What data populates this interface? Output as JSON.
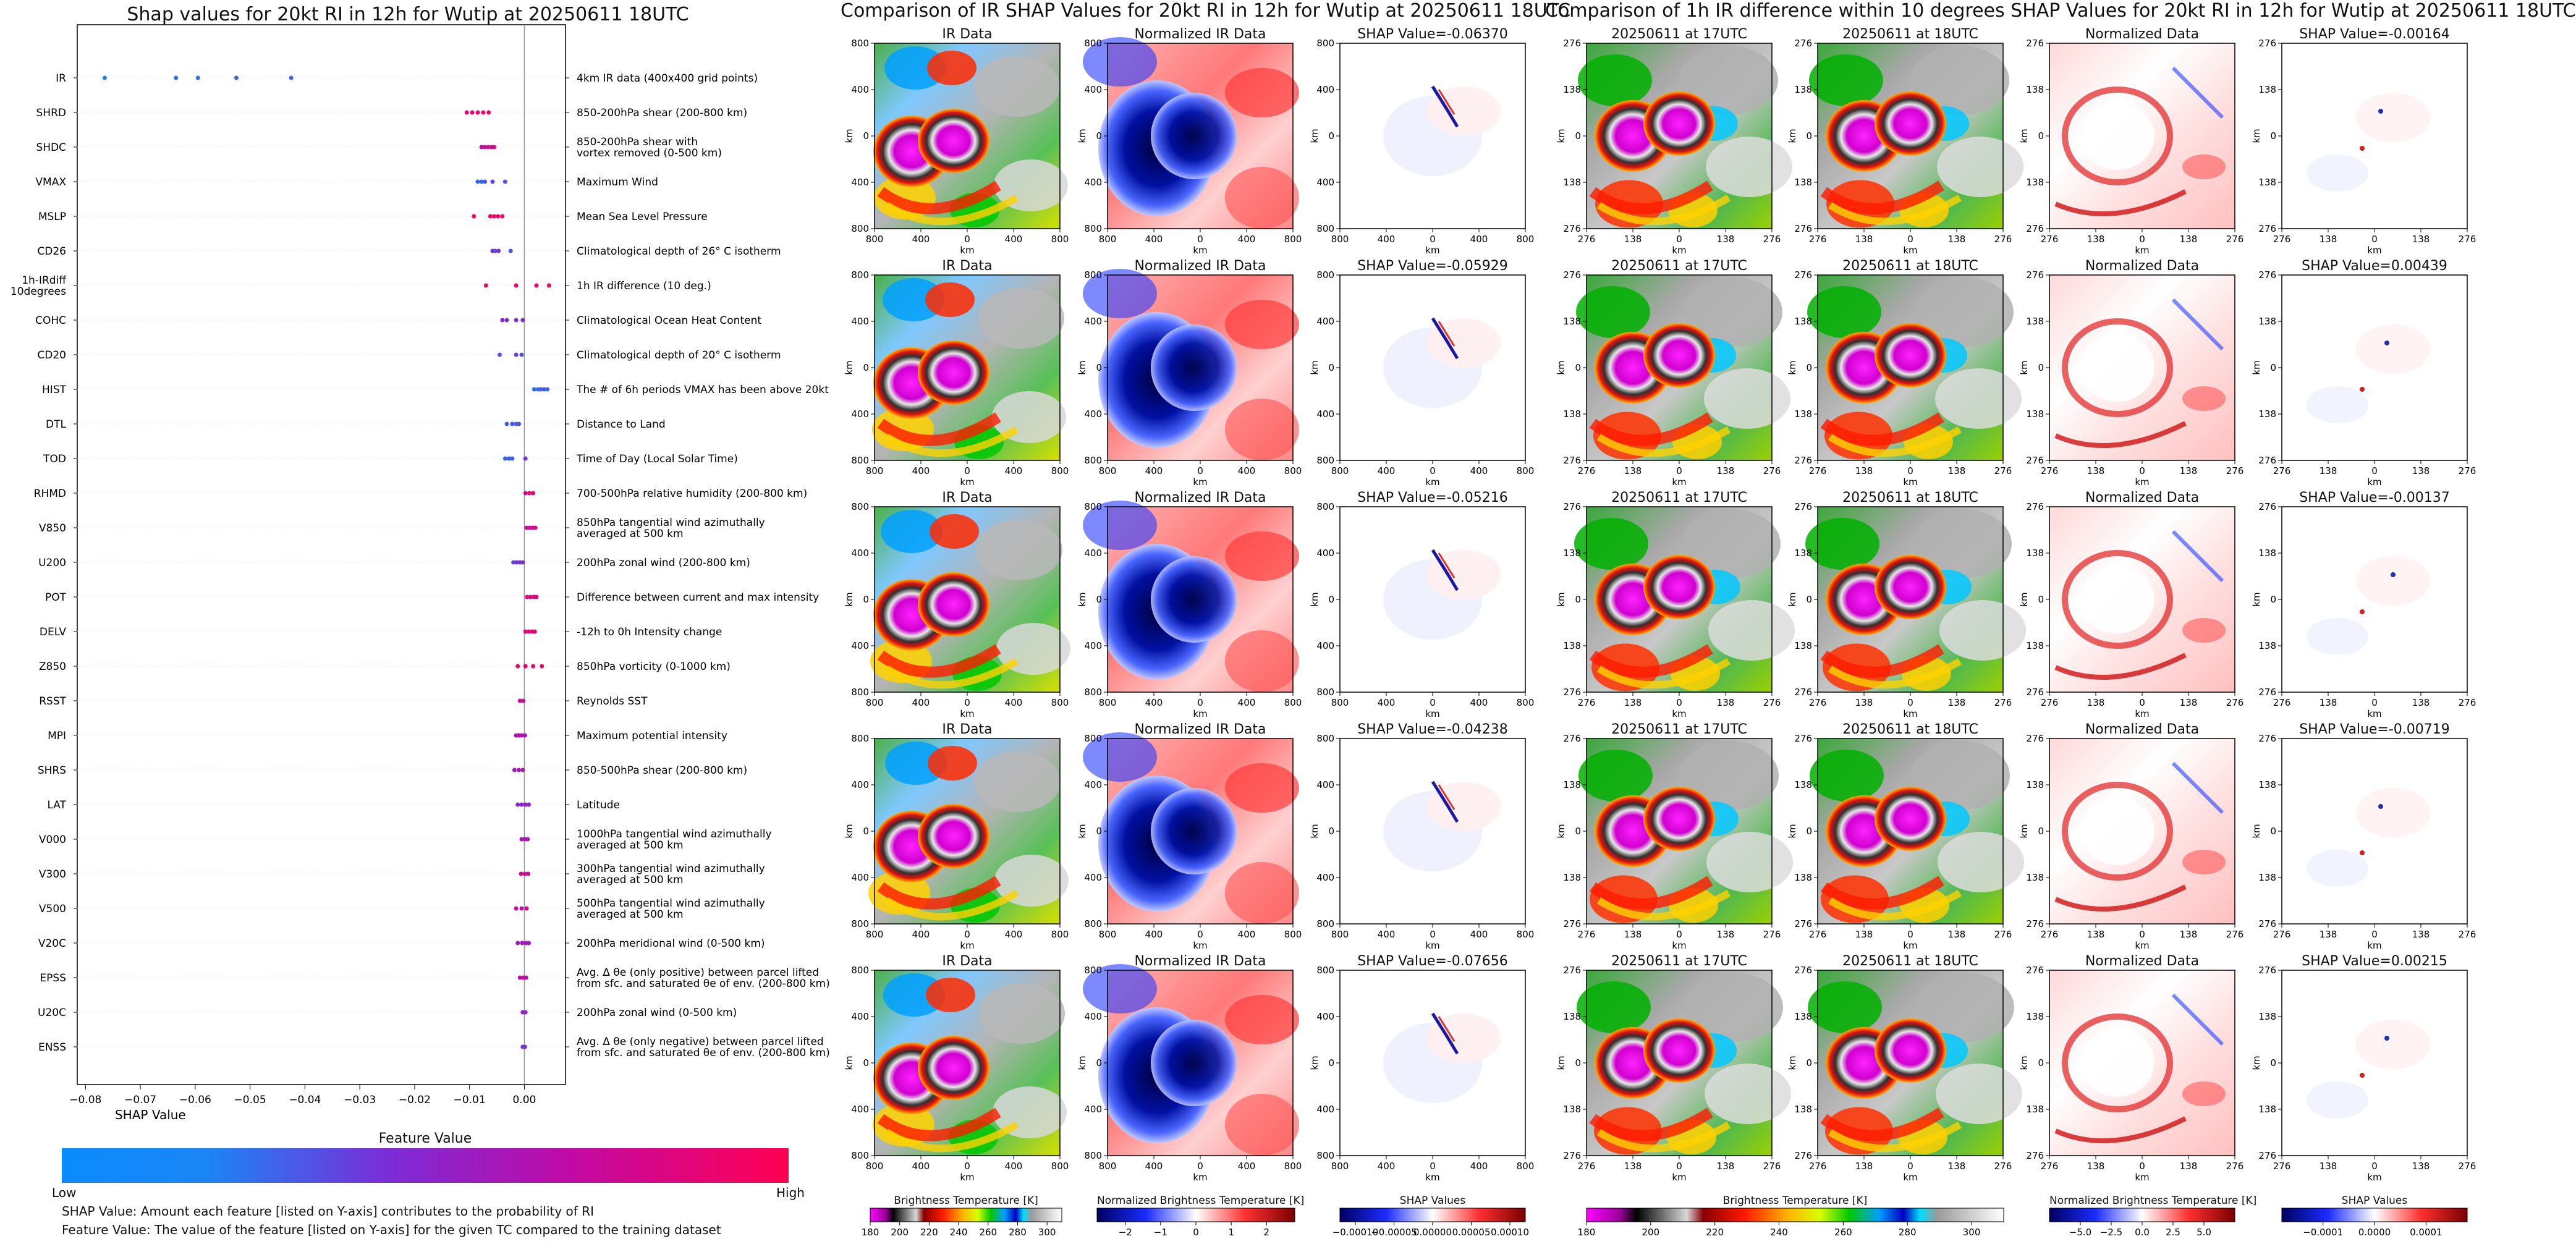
{
  "shap_title": "Shap values for 20kt RI in 12h for Wutip at 20250611 18UTC",
  "mid_title": "Comparison of IR SHAP Values for 20kt RI in 12h for Wutip at 20250611 18UTC",
  "right_title": "Comparison of 1h IR difference within 10 degrees SHAP Values for 20kt RI in 12h for Wutip at 20250611 18UTC",
  "colorbar": {
    "title": "Feature Value",
    "low": "Low",
    "high": "High",
    "colors": [
      "#0a8cff",
      "#7b2cd6",
      "#b80fa8",
      "#ff0052"
    ]
  },
  "notes": {
    "line1": "SHAP Value: Amount each feature [listed on Y-axis] contributes to the probability of RI",
    "line2": "Feature Value: The value of the feature [listed on Y-axis] for the given TC compared to the training dataset"
  },
  "axis_units": {
    "km": "km"
  },
  "chart_data": [
    {
      "type": "scatter",
      "name": "shap-beeswarm",
      "title": "Shap values for 20kt RI in 12h for Wutip at 20250611 18UTC",
      "xlabel": "SHAP Value",
      "ylabel": "",
      "xlim": [
        -0.0815,
        0.0075
      ],
      "xticks": [
        -0.08,
        -0.07,
        -0.06,
        -0.05,
        -0.04,
        -0.03,
        -0.02,
        -0.01,
        0.0
      ],
      "xtick_labels": [
        "−0.08",
        "−0.07",
        "−0.06",
        "−0.05",
        "−0.04",
        "−0.03",
        "−0.02",
        "−0.01",
        "0.00"
      ],
      "features": [
        {
          "code": "IR",
          "desc": "4km IR data (400x400 grid points)",
          "points": [
            [
              -0.0765,
              0.05
            ],
            [
              -0.0635,
              0.1
            ],
            [
              -0.0595,
              0.1
            ],
            [
              -0.0525,
              0.15
            ],
            [
              -0.0425,
              0.15
            ]
          ]
        },
        {
          "code": "SHRD",
          "desc": "850-200hPa shear (200-800 km)",
          "points": [
            [
              -0.0105,
              0.88
            ],
            [
              -0.0095,
              0.85
            ],
            [
              -0.0085,
              0.88
            ],
            [
              -0.0075,
              0.92
            ],
            [
              -0.0065,
              0.95
            ]
          ]
        },
        {
          "code": "SHDC",
          "desc": "850-200hPa shear with\nvortex removed (0-500 km)",
          "points": [
            [
              -0.0078,
              0.7
            ],
            [
              -0.0072,
              0.75
            ],
            [
              -0.0066,
              0.72
            ],
            [
              -0.006,
              0.78
            ],
            [
              -0.0055,
              0.8
            ]
          ]
        },
        {
          "code": "VMAX",
          "desc": "Maximum Wind",
          "points": [
            [
              -0.0085,
              0.15
            ],
            [
              -0.0078,
              0.12
            ],
            [
              -0.0072,
              0.18
            ],
            [
              -0.0058,
              0.25
            ],
            [
              -0.0035,
              0.2
            ]
          ]
        },
        {
          "code": "MSLP",
          "desc": "Mean Sea Level Pressure",
          "points": [
            [
              -0.0092,
              0.95
            ],
            [
              -0.0062,
              0.9
            ],
            [
              -0.0055,
              0.92
            ],
            [
              -0.0048,
              0.94
            ],
            [
              -0.004,
              0.9
            ]
          ]
        },
        {
          "code": "CD26",
          "desc": "Climatological depth of 26° C isotherm",
          "points": [
            [
              -0.0058,
              0.3
            ],
            [
              -0.0053,
              0.25
            ],
            [
              -0.0047,
              0.3
            ],
            [
              -0.0025,
              0.2
            ]
          ]
        },
        {
          "code": "1h-IRdiff\n10degrees",
          "desc": "1h IR difference (10 deg.)",
          "points": [
            [
              -0.007,
              0.95
            ],
            [
              -0.0015,
              0.92
            ],
            [
              0.0022,
              0.95
            ],
            [
              0.0045,
              0.97
            ]
          ]
        },
        {
          "code": "COHC",
          "desc": "Climatological Ocean Heat Content",
          "points": [
            [
              -0.004,
              0.4
            ],
            [
              -0.0032,
              0.35
            ],
            [
              -0.0015,
              0.3
            ],
            [
              -0.0003,
              0.35
            ]
          ]
        },
        {
          "code": "CD20",
          "desc": "Climatological depth of 20° C isotherm",
          "points": [
            [
              -0.0045,
              0.2
            ],
            [
              -0.0015,
              0.25
            ],
            [
              -0.0005,
              0.2
            ]
          ]
        },
        {
          "code": "HIST",
          "desc": "The # of 6h periods VMAX has been above 20kt",
          "points": [
            [
              0.0018,
              0.1
            ],
            [
              0.0025,
              0.12
            ],
            [
              0.003,
              0.15
            ],
            [
              0.0036,
              0.2
            ],
            [
              0.0042,
              0.1
            ]
          ]
        },
        {
          "code": "DTL",
          "desc": "Distance to Land",
          "points": [
            [
              -0.0032,
              0.15
            ],
            [
              -0.0022,
              0.2
            ],
            [
              -0.0015,
              0.15
            ],
            [
              -0.001,
              0.2
            ]
          ]
        },
        {
          "code": "TOD",
          "desc": "Time of Day (Local Solar Time)",
          "points": [
            [
              -0.0035,
              0.12
            ],
            [
              -0.0028,
              0.18
            ],
            [
              -0.0022,
              0.12
            ],
            [
              0.0002,
              0.3
            ]
          ]
        },
        {
          "code": "RHMD",
          "desc": "700-500hPa relative humidity (200-800 km)",
          "points": [
            [
              0.0002,
              0.8
            ],
            [
              0.0009,
              0.85
            ],
            [
              0.0016,
              0.9
            ]
          ]
        },
        {
          "code": "V850",
          "desc": "850hPa tangential wind azimuthally\naveraged at 500 km",
          "points": [
            [
              0.0004,
              0.8
            ],
            [
              0.001,
              0.75
            ],
            [
              0.0015,
              0.8
            ],
            [
              0.002,
              0.78
            ]
          ]
        },
        {
          "code": "U200",
          "desc": "200hPa zonal wind (200-800 km)",
          "points": [
            [
              -0.002,
              0.25
            ],
            [
              -0.0014,
              0.35
            ],
            [
              -0.0008,
              0.3
            ],
            [
              -0.0003,
              0.35
            ]
          ]
        },
        {
          "code": "POT",
          "desc": "Difference between current and max intensity",
          "points": [
            [
              0.0005,
              0.85
            ],
            [
              0.0011,
              0.8
            ],
            [
              0.0017,
              0.85
            ],
            [
              0.0022,
              0.85
            ]
          ]
        },
        {
          "code": "DELV",
          "desc": "-12h to 0h Intensity change",
          "points": [
            [
              0.0002,
              0.9
            ],
            [
              0.0008,
              0.85
            ],
            [
              0.0014,
              0.9
            ],
            [
              0.0019,
              0.88
            ]
          ]
        },
        {
          "code": "Z850",
          "desc": "850hPa vorticity (0-1000 km)",
          "points": [
            [
              -0.0012,
              0.9
            ],
            [
              0.0002,
              0.88
            ],
            [
              0.0016,
              0.9
            ],
            [
              0.0032,
              0.85
            ]
          ]
        },
        {
          "code": "RSST",
          "desc": "Reynolds SST",
          "points": [
            [
              -0.0008,
              0.7
            ],
            [
              -0.0002,
              0.75
            ]
          ]
        },
        {
          "code": "MPI",
          "desc": "Maximum potential intensity",
          "points": [
            [
              -0.0015,
              0.6
            ],
            [
              -0.001,
              0.65
            ],
            [
              -0.0005,
              0.6
            ],
            [
              0.0001,
              0.62
            ]
          ]
        },
        {
          "code": "SHRS",
          "desc": "850-500hPa shear (200-800 km)",
          "points": [
            [
              -0.0018,
              0.5
            ],
            [
              -0.001,
              0.55
            ],
            [
              -0.0003,
              0.6
            ]
          ]
        },
        {
          "code": "LAT",
          "desc": "Latitude",
          "points": [
            [
              -0.0012,
              0.45
            ],
            [
              -0.0005,
              0.4
            ],
            [
              0.0002,
              0.45
            ],
            [
              0.0008,
              0.4
            ]
          ]
        },
        {
          "code": "V000",
          "desc": "1000hPa tangential wind azimuthally\naveraged at 500 km",
          "points": [
            [
              -0.0005,
              0.6
            ],
            [
              0.0001,
              0.55
            ],
            [
              0.0006,
              0.6
            ]
          ]
        },
        {
          "code": "V300",
          "desc": "300hPa tangential wind azimuthally\naveraged at 500 km",
          "points": [
            [
              -0.0006,
              0.7
            ],
            [
              0.0001,
              0.75
            ],
            [
              0.0007,
              0.72
            ]
          ]
        },
        {
          "code": "V500",
          "desc": "500hPa tangential wind azimuthally\naveraged at 500 km",
          "points": [
            [
              -0.0015,
              0.75
            ],
            [
              -0.0005,
              0.7
            ],
            [
              0.0004,
              0.78
            ]
          ]
        },
        {
          "code": "V20C",
          "desc": "200hPa meridional wind (0-500 km)",
          "points": [
            [
              -0.0012,
              0.55
            ],
            [
              -0.0004,
              0.5
            ],
            [
              0.0003,
              0.55
            ],
            [
              0.0008,
              0.5
            ]
          ]
        },
        {
          "code": "EPSS",
          "desc": "Avg. Δ θe (only positive) between parcel lifted\nfrom sfc. and saturated θe of env. (200-800 km)",
          "points": [
            [
              -0.0008,
              0.65
            ],
            [
              -0.0002,
              0.7
            ],
            [
              0.0003,
              0.65
            ]
          ]
        },
        {
          "code": "U20C",
          "desc": "200hPa zonal wind (0-500 km)",
          "points": [
            [
              -0.0003,
              0.4
            ],
            [
              0.0002,
              0.45
            ]
          ]
        },
        {
          "code": "ENSS",
          "desc": "Avg. Δ θe (only negative) between parcel lifted\nfrom sfc. and saturated θe of env. (200-800 km)",
          "points": [
            [
              -0.0003,
              0.3
            ],
            [
              0.0001,
              0.3
            ]
          ]
        }
      ]
    },
    {
      "type": "heatmap",
      "name": "ir-shap-grid",
      "column_titles": [
        "IR Data",
        "Normalized IR Data",
        "SHAP Value=-0.06370"
      ],
      "rows": [
        {
          "titles": [
            "IR Data",
            "Normalized IR Data",
            "SHAP Value=-0.06370"
          ]
        },
        {
          "titles": [
            "IR Data",
            "Normalized IR Data",
            "SHAP Value=-0.05929"
          ]
        },
        {
          "titles": [
            "IR Data",
            "Normalized IR Data",
            "SHAP Value=-0.05216"
          ]
        },
        {
          "titles": [
            "IR Data",
            "Normalized IR Data",
            "SHAP Value=-0.04238"
          ]
        },
        {
          "titles": [
            "IR Data",
            "Normalized IR Data",
            "SHAP Value=-0.07656"
          ]
        }
      ],
      "xticks": [
        "800",
        "400",
        "0",
        "400",
        "800"
      ],
      "yticks": [
        "800",
        "400",
        "0",
        "400",
        "800"
      ],
      "xlabel": "km",
      "ylabel": "km",
      "colorbars": [
        {
          "label": "Brightness Temperature [K]",
          "ticks": [
            "180",
            "200",
            "220",
            "240",
            "260",
            "280",
            "300"
          ],
          "range": [
            180,
            310
          ]
        },
        {
          "label": "Normalized Brightness Temperature [K]",
          "ticks": [
            "−2",
            "−1",
            "0",
            "1",
            "2"
          ],
          "range": [
            -2.8,
            2.8
          ]
        },
        {
          "label": "SHAP Values",
          "ticks": [
            "−0.00010",
            "−0.00005",
            "0.00000",
            "0.00005",
            "0.00010"
          ],
          "range": [
            -0.00012,
            0.00012
          ]
        }
      ]
    },
    {
      "type": "heatmap",
      "name": "irdiff-shap-grid",
      "rows": [
        {
          "titles": [
            "20250611 at 17UTC",
            "20250611 at 18UTC",
            "Normalized Data",
            "SHAP Value=-0.00164"
          ]
        },
        {
          "titles": [
            "20250611 at 17UTC",
            "20250611 at 18UTC",
            "Normalized Data",
            "SHAP Value=0.00439"
          ]
        },
        {
          "titles": [
            "20250611 at 17UTC",
            "20250611 at 18UTC",
            "Normalized Data",
            "SHAP Value=-0.00137"
          ]
        },
        {
          "titles": [
            "20250611 at 17UTC",
            "20250611 at 18UTC",
            "Normalized Data",
            "SHAP Value=-0.00719"
          ]
        },
        {
          "titles": [
            "20250611 at 17UTC",
            "20250611 at 18UTC",
            "Normalized Data",
            "SHAP Value=0.00215"
          ]
        }
      ],
      "xticks": [
        "276",
        "138",
        "0",
        "138",
        "276"
      ],
      "yticks": [
        "276",
        "138",
        "0",
        "138",
        "276"
      ],
      "xlabel": "km",
      "ylabel": "km",
      "colorbars": [
        {
          "label": "Brightness Temperature [K]",
          "ticks": [
            "180",
            "200",
            "220",
            "240",
            "260",
            "280",
            "300"
          ],
          "range": [
            180,
            310
          ]
        },
        {
          "label": "Normalized Brightness Temperature [K]",
          "ticks": [
            "−5.0",
            "−2.5",
            "0.0",
            "2.5",
            "5.0"
          ],
          "range": [
            -7.5,
            7.5
          ]
        },
        {
          "label": "SHAP Values",
          "ticks": [
            "−0.0001",
            "0.0000",
            "0.0001"
          ],
          "range": [
            -0.00018,
            0.00018
          ]
        }
      ]
    }
  ]
}
